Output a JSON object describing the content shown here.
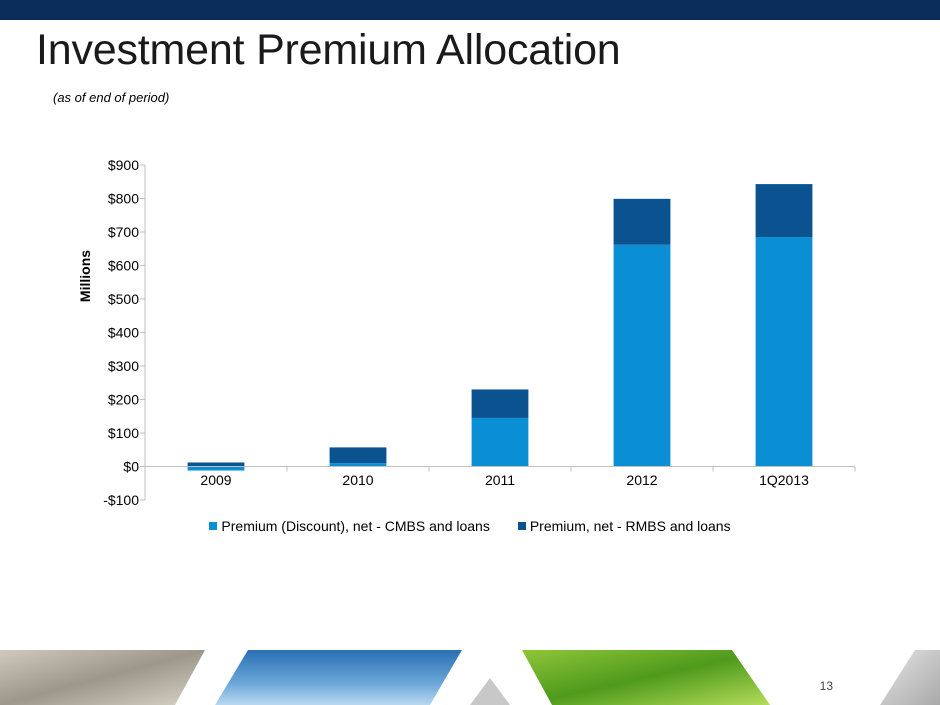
{
  "slide": {
    "title": "Investment Premium Allocation",
    "subtitle": "(as of end of period)",
    "page_number": "13"
  },
  "colors": {
    "top_bar": "#0b2d5c",
    "series_cmbs": "#0b8fd4",
    "series_rmbs": "#0a5290"
  },
  "chart_data": {
    "type": "bar",
    "stacked": true,
    "categories": [
      "2009",
      "2010",
      "2011",
      "2012",
      "1Q2013"
    ],
    "series": [
      {
        "name": "Premium (Discount), net - CMBS and loans",
        "color": "#0b8fd4",
        "values": [
          -12,
          10,
          145,
          662,
          685
        ]
      },
      {
        "name": "Premium, net - RMBS and loans",
        "color": "#0a5290",
        "values": [
          12,
          47,
          85,
          137,
          158
        ]
      }
    ],
    "ylabel": "Millions",
    "ylim": [
      -100,
      900
    ],
    "yticks": [
      {
        "value": -100,
        "label": "-$100"
      },
      {
        "value": 0,
        "label": "$0"
      },
      {
        "value": 100,
        "label": "$100"
      },
      {
        "value": 200,
        "label": "$200"
      },
      {
        "value": 300,
        "label": "$300"
      },
      {
        "value": 400,
        "label": "$400"
      },
      {
        "value": 500,
        "label": "$500"
      },
      {
        "value": 600,
        "label": "$600"
      },
      {
        "value": 700,
        "label": "$700"
      },
      {
        "value": 800,
        "label": "$800"
      },
      {
        "value": 900,
        "label": "$900"
      }
    ],
    "legend_position": "bottom",
    "grid": false
  }
}
